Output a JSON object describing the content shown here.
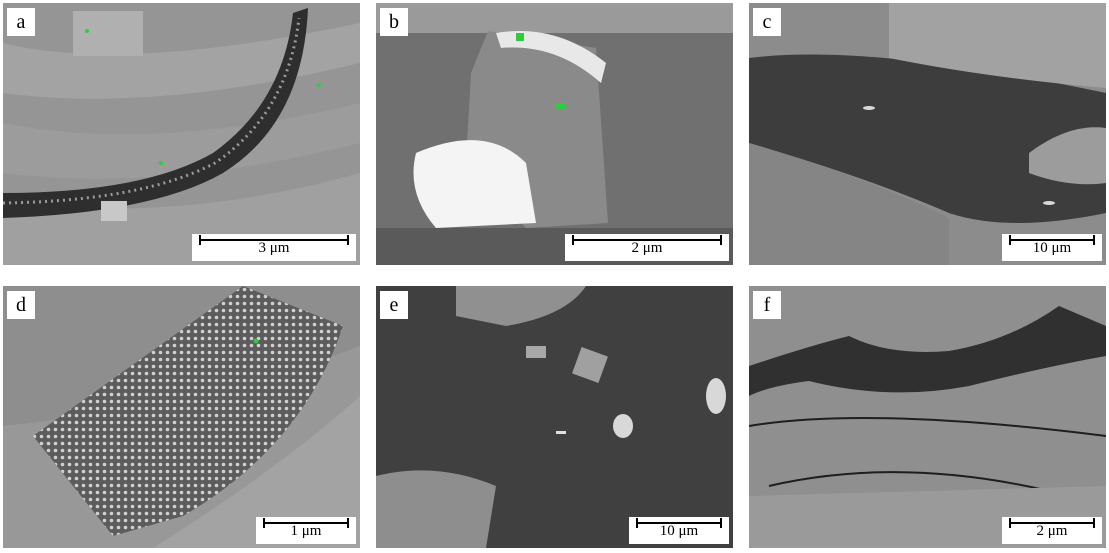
{
  "figure": {
    "panels": [
      {
        "id": "a",
        "letter": "a",
        "scale_label": "3 μm"
      },
      {
        "id": "b",
        "letter": "b",
        "scale_label": "2 μm"
      },
      {
        "id": "c",
        "letter": "c",
        "scale_label": "10 μm"
      },
      {
        "id": "d",
        "letter": "d",
        "scale_label": "1 μm"
      },
      {
        "id": "e",
        "letter": "e",
        "scale_label": "10 μm"
      },
      {
        "id": "f",
        "letter": "f",
        "scale_label": "2 μm"
      }
    ]
  },
  "colors": {
    "matrix_gray": "#8f8f8f",
    "dark_pore": "#3d3d3d",
    "bright_mineral": "#d8d8d8",
    "marker_green": "#2ecc40"
  }
}
